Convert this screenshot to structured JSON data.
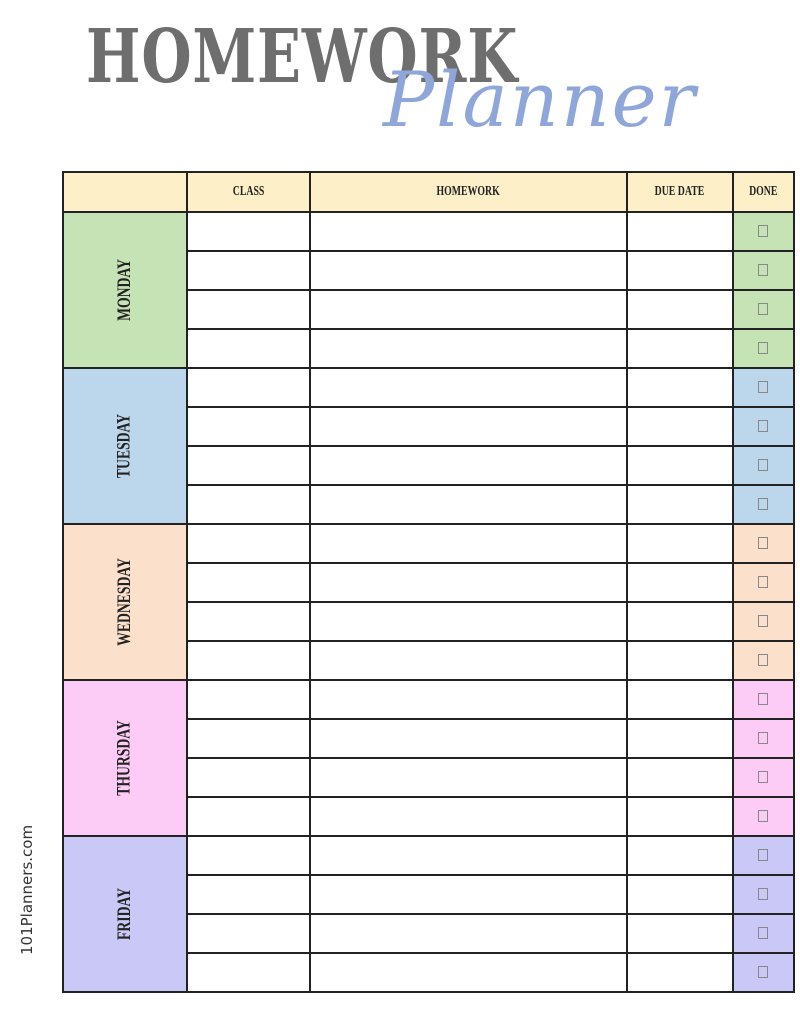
{
  "title": {
    "main": "HOMEWORK",
    "script": "Planner"
  },
  "watermark": "101Planners.com",
  "columns": [
    "",
    "CLASS",
    "HOMEWORK",
    "DUE DATE",
    "DONE"
  ],
  "header_color": "#fdf0c8",
  "rows_per_day": 4,
  "days": [
    {
      "label": "MONDAY",
      "color": "#c6e3b5"
    },
    {
      "label": "TUESDAY",
      "color": "#bcd6ec"
    },
    {
      "label": "WEDNESDAY",
      "color": "#fbe1cb"
    },
    {
      "label": "THURSDAY",
      "color": "#fccbf6"
    },
    {
      "label": "FRIDAY",
      "color": "#c9c8f7"
    }
  ]
}
